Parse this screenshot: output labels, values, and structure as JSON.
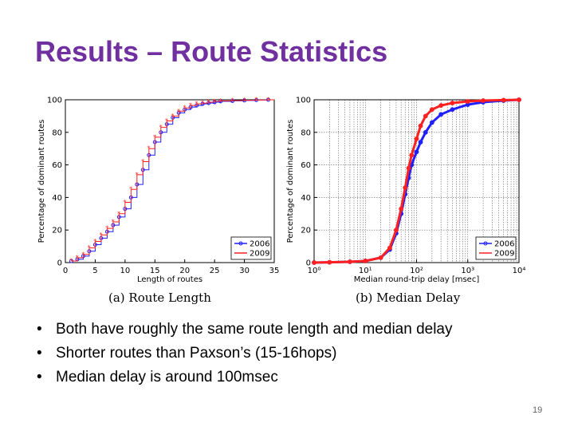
{
  "slide": {
    "title": "Results – Route Statistics",
    "bullets": [
      "Both have roughly the same route length and median delay",
      "Shorter routes than Paxson’s (15-16hops)",
      "Median delay is around 100msec"
    ],
    "page_number": "19"
  },
  "colors": {
    "title": "#7030a0",
    "series_2006": "#2020ff",
    "series_2009": "#ff2020"
  },
  "chart_data": [
    {
      "type": "line",
      "caption": "(a) Route Length",
      "xlabel": "Length of routes",
      "ylabel": "Percentage of dominant routes",
      "xlim": [
        0,
        35
      ],
      "ylim": [
        0,
        100
      ],
      "xticks": [
        0,
        5,
        10,
        15,
        20,
        25,
        30,
        35
      ],
      "yticks": [
        0,
        20,
        40,
        60,
        80,
        100
      ],
      "x_tick_labels": [
        "0",
        "5",
        "10",
        "15",
        "20",
        "25",
        "30",
        "35"
      ],
      "y_tick_labels": [
        "0",
        "20",
        "40",
        "60",
        "80",
        "100"
      ],
      "grid": false,
      "legend": "bottom-right",
      "series": [
        {
          "name": "2006",
          "x": [
            1,
            2,
            3,
            4,
            5,
            6,
            7,
            8,
            9,
            10,
            11,
            12,
            13,
            14,
            15,
            16,
            17,
            18,
            19,
            20,
            21,
            22,
            23,
            24,
            25,
            26,
            28,
            30,
            32,
            34
          ],
          "values": [
            1,
            2,
            4,
            7,
            11,
            15,
            19,
            23,
            28,
            33,
            40,
            48,
            57,
            66,
            74,
            80,
            85,
            89,
            92,
            94,
            95.5,
            96.5,
            97.5,
            98,
            98.5,
            99,
            99.3,
            99.6,
            99.8,
            100
          ]
        },
        {
          "name": "2009",
          "x": [
            1,
            2,
            3,
            4,
            5,
            6,
            7,
            8,
            9,
            10,
            11,
            12,
            13,
            14,
            15,
            16,
            17,
            18,
            19,
            20,
            21,
            22,
            23,
            24,
            25,
            26,
            28,
            30,
            32,
            34
          ],
          "values": [
            1,
            3,
            5,
            9,
            13,
            17,
            21,
            25,
            30,
            37,
            45,
            54,
            62,
            70,
            77,
            83,
            87,
            90,
            93,
            95,
            96.5,
            97.5,
            98,
            98.5,
            99,
            99.3,
            99.5,
            99.7,
            99.9,
            100
          ]
        }
      ]
    },
    {
      "type": "line",
      "caption": "(b) Median Delay",
      "xlabel": "Median round-trip delay [msec]",
      "ylabel": "Percentage of dominant routes",
      "xscale": "log",
      "xlim": [
        1,
        10000
      ],
      "ylim": [
        0,
        100
      ],
      "xticks": [
        1,
        10,
        100,
        1000,
        10000
      ],
      "yticks": [
        0,
        20,
        40,
        60,
        80,
        100
      ],
      "x_tick_labels": [
        "10⁰",
        "10¹",
        "10²",
        "10³",
        "10⁴"
      ],
      "y_tick_labels": [
        "0",
        "20",
        "40",
        "60",
        "80",
        "100"
      ],
      "grid": true,
      "legend": "bottom-right",
      "series": [
        {
          "name": "2006",
          "x": [
            1,
            2,
            5,
            10,
            20,
            30,
            40,
            50,
            60,
            70,
            80,
            100,
            120,
            150,
            200,
            300,
            500,
            1000,
            2000,
            5000,
            10000
          ],
          "values": [
            0,
            0.2,
            0.5,
            1,
            3,
            8,
            18,
            30,
            42,
            52,
            60,
            68,
            74,
            80,
            86,
            91,
            94,
            97,
            98.5,
            99.5,
            100
          ]
        },
        {
          "name": "2009",
          "x": [
            1,
            2,
            5,
            10,
            20,
            30,
            40,
            50,
            60,
            70,
            80,
            100,
            120,
            150,
            200,
            300,
            500,
            1000,
            2000,
            5000,
            10000
          ],
          "values": [
            0,
            0.2,
            0.5,
            1,
            3,
            9,
            20,
            33,
            46,
            58,
            66,
            76,
            84,
            90,
            94,
            96.5,
            98,
            99,
            99.5,
            99.8,
            100
          ]
        }
      ]
    }
  ]
}
